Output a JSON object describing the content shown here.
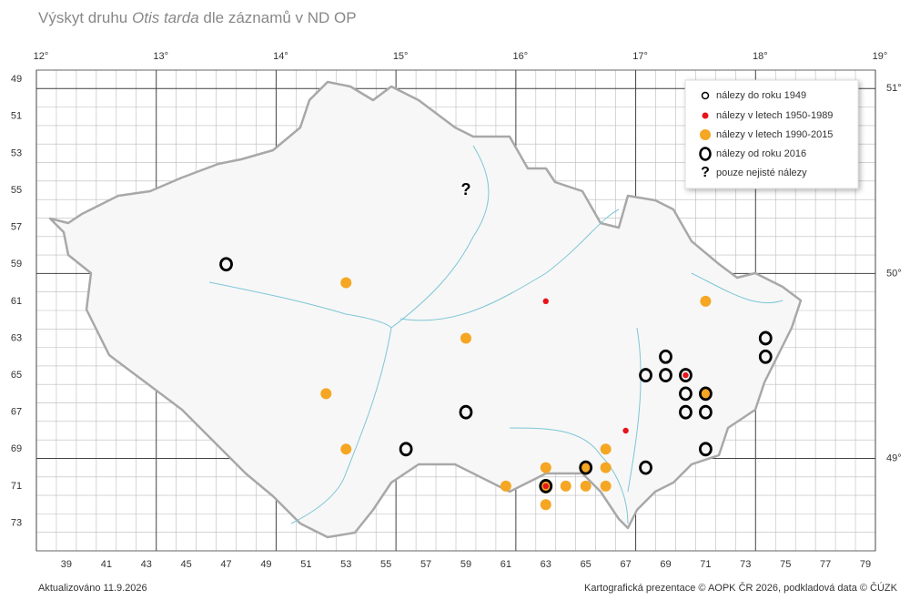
{
  "title": {
    "prefix": "Výskyt druhu ",
    "species": "Otis tarda",
    "suffix": " dle záznamů v ND OP"
  },
  "longitudes": [
    "12°",
    "13°",
    "14°",
    "15°",
    "16°",
    "17°",
    "18°",
    "19°"
  ],
  "latitudes": [
    "51°",
    "50°",
    "49°"
  ],
  "row_labels": [
    49,
    51,
    53,
    55,
    57,
    59,
    61,
    63,
    65,
    67,
    69,
    71,
    73
  ],
  "col_labels": [
    39,
    41,
    43,
    45,
    47,
    49,
    51,
    53,
    55,
    57,
    59,
    61,
    63,
    65,
    67,
    69,
    71,
    73,
    75,
    77,
    79
  ],
  "legend": [
    "nálezy do roku 1949",
    "nálezy v letech 1950-1989",
    "nálezy v letech 1990-2015",
    "nálezy od roku 2016",
    "pouze nejisté nálezy"
  ],
  "uncertain_symbol": "?",
  "records": [
    {
      "col": 47,
      "row": 59,
      "kind": 3
    },
    {
      "col": 53,
      "row": 60,
      "kind": 2
    },
    {
      "col": 63,
      "row": 61,
      "kind": 1
    },
    {
      "col": 59,
      "row": 63,
      "kind": 2
    },
    {
      "col": 52,
      "row": 66,
      "kind": 2
    },
    {
      "col": 59,
      "row": 67,
      "kind": 3
    },
    {
      "col": 53,
      "row": 69,
      "kind": 2
    },
    {
      "col": 56,
      "row": 69,
      "kind": 3
    },
    {
      "col": 71,
      "row": 61,
      "kind": 2
    },
    {
      "col": 74,
      "row": 63,
      "kind": 3
    },
    {
      "col": 74,
      "row": 64,
      "kind": 3
    },
    {
      "col": 69,
      "row": 64,
      "kind": 3
    },
    {
      "col": 68,
      "row": 65,
      "kind": 3
    },
    {
      "col": 69,
      "row": 65,
      "kind": 3
    },
    {
      "col": 70,
      "row": 65,
      "kind": 3
    },
    {
      "col": 70,
      "row": 65,
      "kind": 1
    },
    {
      "col": 70,
      "row": 66,
      "kind": 3
    },
    {
      "col": 71,
      "row": 66,
      "kind": 2
    },
    {
      "col": 71,
      "row": 66,
      "kind": 3
    },
    {
      "col": 70,
      "row": 67,
      "kind": 3
    },
    {
      "col": 71,
      "row": 67,
      "kind": 3
    },
    {
      "col": 71,
      "row": 69,
      "kind": 3
    },
    {
      "col": 67,
      "row": 68,
      "kind": 1
    },
    {
      "col": 66,
      "row": 69,
      "kind": 2
    },
    {
      "col": 63,
      "row": 70,
      "kind": 2
    },
    {
      "col": 65,
      "row": 70,
      "kind": 2
    },
    {
      "col": 65,
      "row": 70,
      "kind": 3
    },
    {
      "col": 66,
      "row": 70,
      "kind": 2
    },
    {
      "col": 68,
      "row": 70,
      "kind": 3
    },
    {
      "col": 61,
      "row": 71,
      "kind": 2
    },
    {
      "col": 63,
      "row": 71,
      "kind": 2
    },
    {
      "col": 63,
      "row": 71,
      "kind": 3
    },
    {
      "col": 63,
      "row": 71,
      "kind": 1
    },
    {
      "col": 64,
      "row": 71,
      "kind": 2
    },
    {
      "col": 65,
      "row": 71,
      "kind": 2
    },
    {
      "col": 66,
      "row": 71,
      "kind": 2
    },
    {
      "col": 63,
      "row": 72,
      "kind": 2
    },
    {
      "col": 59,
      "row": 55,
      "kind": 4
    }
  ],
  "footer_left": "Aktualizováno 11.9.2026",
  "footer_right": "Kartografická prezentace © AOPK ČR 2026, podkladová data © ČÚZK"
}
